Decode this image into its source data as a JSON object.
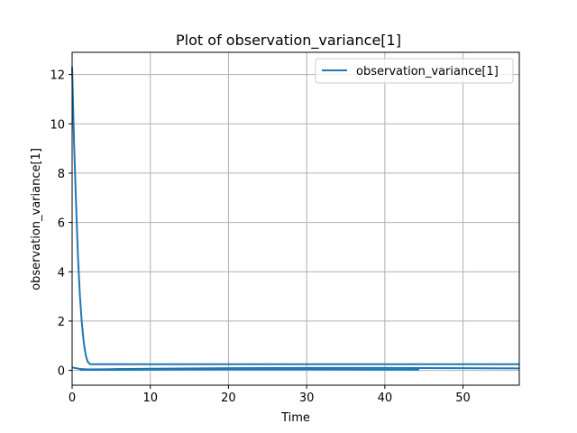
{
  "chart_data": {
    "type": "line",
    "title": "Plot of observation_variance[1]",
    "xlabel": "Time",
    "ylabel": "observation_variance[1]",
    "xlim": [
      0,
      57.2
    ],
    "ylim": [
      -0.6,
      12.9
    ],
    "xticks": [
      0,
      10,
      20,
      30,
      40,
      50
    ],
    "yticks": [
      0,
      2,
      4,
      6,
      8,
      10,
      12
    ],
    "grid": true,
    "legend_position": "top-right",
    "series": [
      {
        "name": "observation_variance[1]",
        "color": "#1f77b4",
        "segments": [
          {
            "x": [
              0,
              0.25,
              0.5,
              0.75,
              1.0,
              1.25,
              1.5,
              1.75,
              2.0,
              2.3,
              3,
              10,
              20,
              30,
              40,
              50,
              57.2
            ],
            "y": [
              12.3,
              9.2,
              6.8,
              4.6,
              3.0,
              1.9,
              1.1,
              0.6,
              0.35,
              0.25,
              0.25,
              0.25,
              0.25,
              0.25,
              0.25,
              0.25,
              0.25
            ]
          },
          {
            "x": [
              0,
              1,
              2,
              5,
              10,
              20,
              30,
              40,
              50,
              57.2
            ],
            "y": [
              0.12,
              0.06,
              0.04,
              0.05,
              0.07,
              0.09,
              0.1,
              0.1,
              0.09,
              0.08
            ]
          },
          {
            "x": [
              1,
              5,
              10,
              20,
              30,
              40,
              44.4
            ],
            "y": [
              0.02,
              0.02,
              0.03,
              0.04,
              0.04,
              0.03,
              0.03
            ]
          }
        ]
      }
    ]
  }
}
